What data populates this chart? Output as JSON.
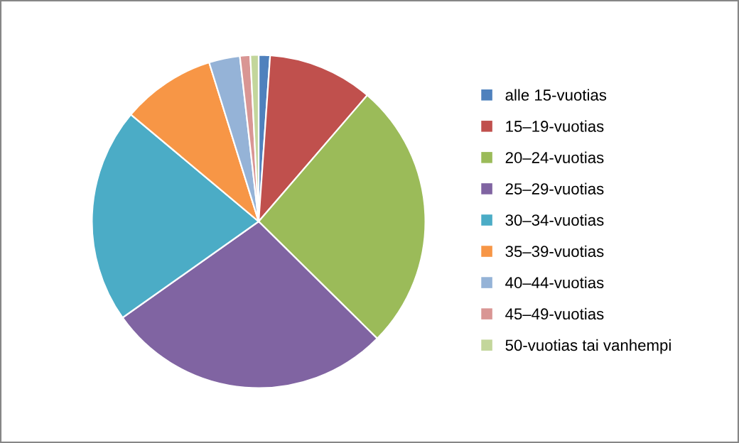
{
  "chart_data": {
    "type": "pie",
    "categories": [
      "alle 15-vuotias",
      "15–19-vuotias",
      "20–24-vuotias",
      "25–29-vuotias",
      "30–34-vuotias",
      "35–39-vuotias",
      "40–44-vuotias",
      "45–49-vuotias",
      "50-vuotias tai vanhempi"
    ],
    "values": [
      1.1,
      10.2,
      26.1,
      27.8,
      20.9,
      9.1,
      3.0,
      1.0,
      0.8
    ],
    "colors": [
      "#4f81bd",
      "#c0504d",
      "#9bbb59",
      "#8064a2",
      "#4bacc6",
      "#f79646",
      "#95b3d7",
      "#d99694",
      "#c3d69b"
    ],
    "legend": "right"
  }
}
